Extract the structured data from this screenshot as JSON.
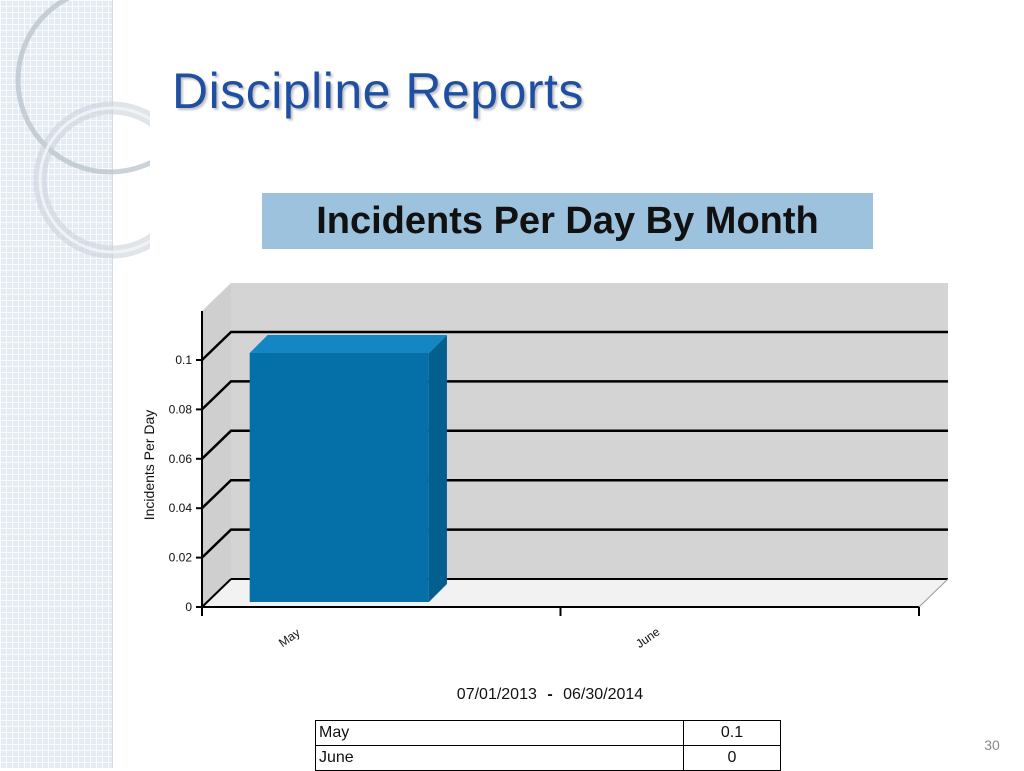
{
  "slide": {
    "title": "Discipline Reports",
    "page_number": "30"
  },
  "chart_data": {
    "type": "bar",
    "title": "Incidents Per Day By Month",
    "ylabel": "Incidents Per Day",
    "xlabel": "",
    "categories": [
      "May",
      "June"
    ],
    "values": [
      0.1,
      0
    ],
    "ylim": [
      0,
      0.1
    ],
    "yticks": [
      "0",
      "0.02",
      "0.04",
      "0.06",
      "0.08",
      "0.1"
    ],
    "grid": true,
    "style": "3d",
    "bar_color": "#0570a8",
    "title_background": "#9cc2de"
  },
  "date_range": {
    "start": "07/01/2013",
    "separator": "-",
    "end": "06/30/2014"
  },
  "table": {
    "rows": [
      {
        "label": "May",
        "value": "0.1"
      },
      {
        "label": "June",
        "value": "0"
      }
    ]
  }
}
